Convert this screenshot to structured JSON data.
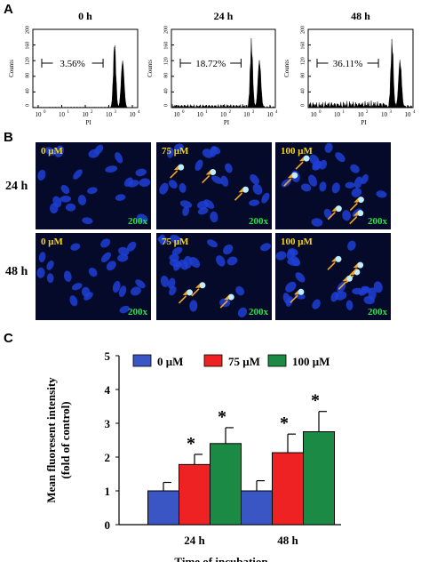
{
  "panel_a": {
    "letter": "A",
    "histograms": [
      {
        "title": "0 h",
        "percent": "3.56%",
        "ylabel": "Counts",
        "xlabel": "PI",
        "yticks": [
          "0",
          "40",
          "80",
          "120",
          "160",
          "200"
        ],
        "xticks": [
          "10",
          "10",
          "10",
          "10",
          "10"
        ],
        "xexp": [
          "0",
          "1",
          "2",
          "3",
          "4"
        ]
      },
      {
        "title": "24 h",
        "percent": "18.72%",
        "ylabel": "Counts",
        "xlabel": "PI",
        "yticks": [
          "0",
          "40",
          "80",
          "120",
          "160",
          "200"
        ],
        "xticks": [
          "10",
          "10",
          "10",
          "10",
          "10"
        ],
        "xexp": [
          "0",
          "1",
          "2",
          "3",
          "4"
        ]
      },
      {
        "title": "48 h",
        "percent": "36.11%",
        "ylabel": "Counts",
        "xlabel": "PI",
        "yticks": [
          "0",
          "40",
          "80",
          "120",
          "160",
          "200"
        ],
        "xticks": [
          "10",
          "10",
          "10",
          "10",
          "10"
        ],
        "xexp": [
          "0",
          "1",
          "2",
          "3",
          "4"
        ]
      }
    ]
  },
  "panel_b": {
    "letter": "B",
    "rows": [
      "24 h",
      "48 h"
    ],
    "images": [
      {
        "conc": "0 μM",
        "mag": "200x"
      },
      {
        "conc": "75 μM",
        "mag": "200x"
      },
      {
        "conc": "100 μM",
        "mag": "200x"
      },
      {
        "conc": "0 μM",
        "mag": "200x"
      },
      {
        "conc": "75 μM",
        "mag": "200x"
      },
      {
        "conc": "100 μM",
        "mag": "200x"
      }
    ],
    "colors": {
      "background": "#050a2a",
      "nucleus": "#1f3fd6",
      "bright": "#bfefff",
      "arrow": "#f5a623",
      "conc_text": "#f2d21a",
      "mag_text": "#2fe04a"
    }
  },
  "panel_c": {
    "letter": "C",
    "significance": "*",
    "chart_data": {
      "type": "bar",
      "categories": [
        "24 h",
        "48 h"
      ],
      "series": [
        {
          "name": "0 μM",
          "color": "#3a56c5",
          "values": [
            1.0,
            1.0
          ],
          "errors": [
            0.25,
            0.3
          ]
        },
        {
          "name": "75 μM",
          "color": "#ee2222",
          "values": [
            1.78,
            2.13
          ],
          "errors": [
            0.3,
            0.55
          ]
        },
        {
          "name": "100 μM",
          "color": "#1a8a44",
          "values": [
            2.4,
            2.75
          ],
          "errors": [
            0.47,
            0.6
          ]
        }
      ],
      "significant": [
        [
          false,
          false
        ],
        [
          true,
          true
        ],
        [
          true,
          true
        ]
      ],
      "xlabel": "Time of incubation",
      "ylabel": "Mean fluoresent intensity",
      "ylabel2": "(fold of control)",
      "ylim": [
        0,
        5
      ],
      "yticks": [
        "0",
        "1",
        "2",
        "3",
        "4",
        "5"
      ],
      "legend_position": "top"
    }
  }
}
